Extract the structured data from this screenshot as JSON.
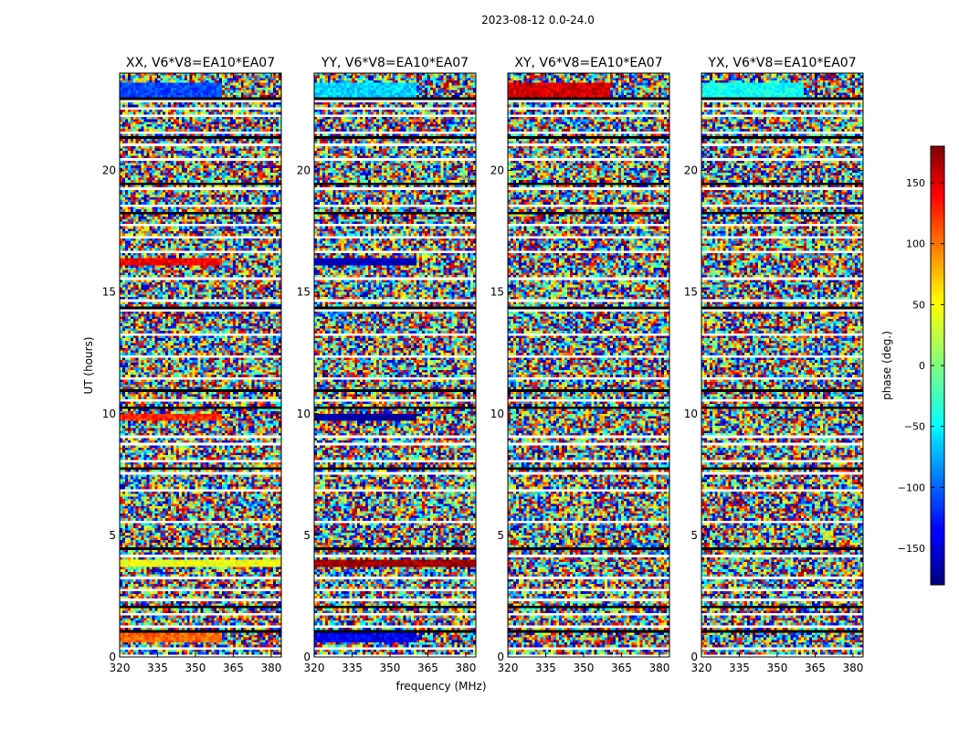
{
  "figure_title": "2023-08-12 0.0-24.0",
  "xlabel": "frequency (MHz)",
  "ylabel": "UT (hours)",
  "colorbar_label": "phase (deg.)",
  "colorbar_ticks": [
    150,
    100,
    50,
    0,
    -50,
    -100,
    -150
  ],
  "colorbar_range": [
    -180,
    180
  ],
  "chart_data": [
    {
      "type": "heatmap",
      "title": "XX, V6*V8=EA10*EA07",
      "xlabel": "frequency (MHz)",
      "ylabel": "UT (hours)",
      "xlim": [
        320,
        384
      ],
      "ylim": [
        0,
        24
      ],
      "xticks": [
        320,
        335,
        350,
        365,
        380
      ],
      "yticks": [
        0,
        5,
        10,
        15,
        20
      ],
      "value_units": "phase (deg.)",
      "description_bands": [
        {
          "ut_start": 23.1,
          "ut_end": 23.6,
          "f_start": 320,
          "f_end": 361,
          "phase": -110
        },
        {
          "ut_start": 16.2,
          "ut_end": 16.45,
          "f_start": 320,
          "f_end": 361,
          "phase": 140
        },
        {
          "ut_start": 9.8,
          "ut_end": 10.0,
          "f_start": 320,
          "f_end": 361,
          "phase": 120
        },
        {
          "ut_start": 3.8,
          "ut_end": 4.0,
          "f_start": 320,
          "f_end": 384,
          "phase": 40
        },
        {
          "ut_start": 0.7,
          "ut_end": 1.0,
          "f_start": 320,
          "f_end": 361,
          "phase": 100
        }
      ]
    },
    {
      "type": "heatmap",
      "title": "YY, V6*V8=EA10*EA07",
      "xlabel": "frequency (MHz)",
      "ylabel": "UT (hours)",
      "xlim": [
        320,
        384
      ],
      "ylim": [
        0,
        24
      ],
      "xticks": [
        320,
        335,
        350,
        365,
        380
      ],
      "yticks": [
        0,
        5,
        10,
        15,
        20
      ],
      "value_units": "phase (deg.)",
      "description_bands": [
        {
          "ut_start": 23.1,
          "ut_end": 23.6,
          "f_start": 320,
          "f_end": 361,
          "phase": -60
        },
        {
          "ut_start": 16.2,
          "ut_end": 16.45,
          "f_start": 320,
          "f_end": 361,
          "phase": -160
        },
        {
          "ut_start": 9.8,
          "ut_end": 10.0,
          "f_start": 320,
          "f_end": 361,
          "phase": -170
        },
        {
          "ut_start": 3.8,
          "ut_end": 4.0,
          "f_start": 320,
          "f_end": 384,
          "phase": 170
        },
        {
          "ut_start": 0.7,
          "ut_end": 1.0,
          "f_start": 320,
          "f_end": 361,
          "phase": -140
        }
      ]
    },
    {
      "type": "heatmap",
      "title": "XY, V6*V8=EA10*EA07",
      "xlabel": "frequency (MHz)",
      "ylabel": "UT (hours)",
      "xlim": [
        320,
        384
      ],
      "ylim": [
        0,
        24
      ],
      "xticks": [
        320,
        335,
        350,
        365,
        380
      ],
      "yticks": [
        0,
        5,
        10,
        15,
        20
      ],
      "value_units": "phase (deg.)",
      "description_bands": [
        {
          "ut_start": 23.1,
          "ut_end": 23.6,
          "f_start": 320,
          "f_end": 361,
          "phase": 150
        }
      ]
    },
    {
      "type": "heatmap",
      "title": "YX, V6*V8=EA10*EA07",
      "xlabel": "frequency (MHz)",
      "ylabel": "UT (hours)",
      "xlim": [
        320,
        384
      ],
      "ylim": [
        0,
        24
      ],
      "xticks": [
        320,
        335,
        350,
        365,
        380
      ],
      "yticks": [
        0,
        5,
        10,
        15,
        20
      ],
      "value_units": "phase (deg.)",
      "description_bands": [
        {
          "ut_start": 23.1,
          "ut_end": 23.6,
          "f_start": 320,
          "f_end": 361,
          "phase": -40
        }
      ]
    }
  ],
  "blank_rows_ut": [
    0.15,
    0.45,
    1.3,
    1.8,
    2.35,
    2.85,
    3.35,
    4.2,
    5.6,
    6.9,
    7.6,
    8.1,
    8.8,
    9.1,
    10.6,
    11.5,
    12.4,
    13.3,
    14.3,
    14.7,
    15.6,
    16.7,
    17.3,
    17.8,
    18.6,
    19.3,
    20.5,
    21.1,
    21.6,
    22.3,
    22.6,
    22.9
  ],
  "dark_rows_ut": [
    1.1,
    2.1,
    4.5,
    7.8,
    10.35,
    11.0,
    14.45,
    18.3,
    19.5,
    21.4,
    23.0
  ]
}
